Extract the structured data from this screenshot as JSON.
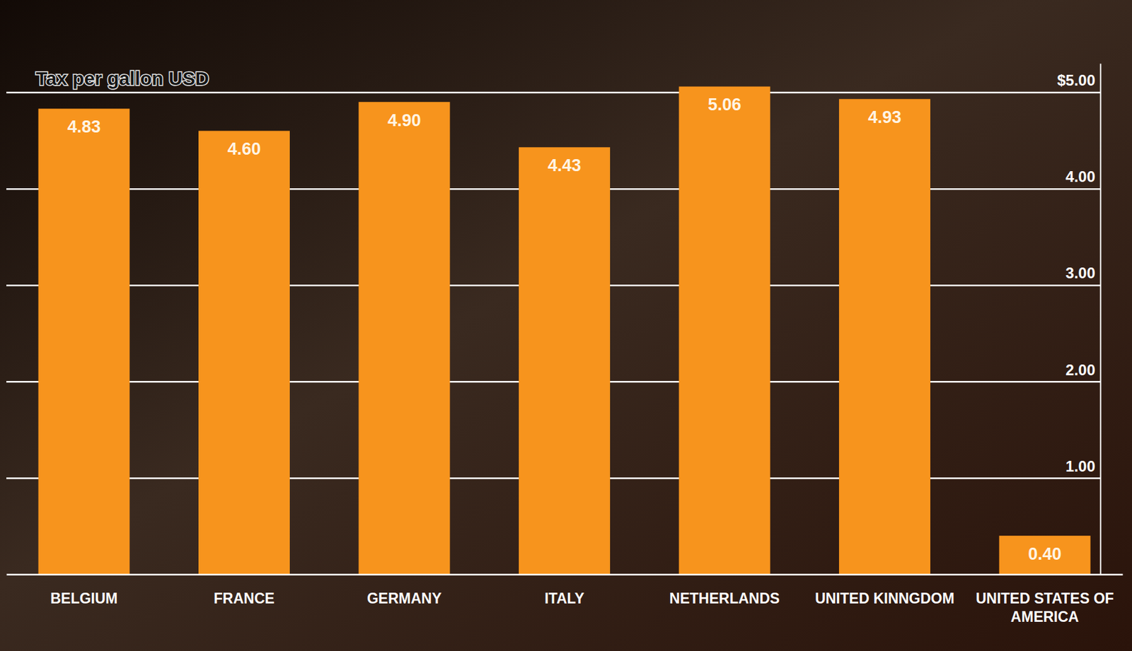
{
  "chart_data": {
    "type": "bar",
    "title": "Tax per gallon USD",
    "categories": [
      "BELGIUM",
      "FRANCE",
      "GERMANY",
      "ITALY",
      "NETHERLANDS",
      "UNITED KINNGDOM",
      "UNITED STATES OF AMERICA"
    ],
    "values": [
      4.83,
      4.6,
      4.9,
      4.43,
      5.06,
      4.93,
      0.4
    ],
    "value_labels": [
      "4.83",
      "4.60",
      "4.90",
      "4.43",
      "5.06",
      "4.93",
      "0.40"
    ],
    "color": "#f7941d",
    "ylim": [
      0,
      5.3
    ],
    "yticks": [
      {
        "value": 1,
        "label": "1.00"
      },
      {
        "value": 2,
        "label": "2.00"
      },
      {
        "value": 3,
        "label": "3.00"
      },
      {
        "value": 4,
        "label": "4.00"
      },
      {
        "value": 5,
        "label": "$5.00"
      }
    ],
    "grid": true,
    "data_labels": true
  }
}
